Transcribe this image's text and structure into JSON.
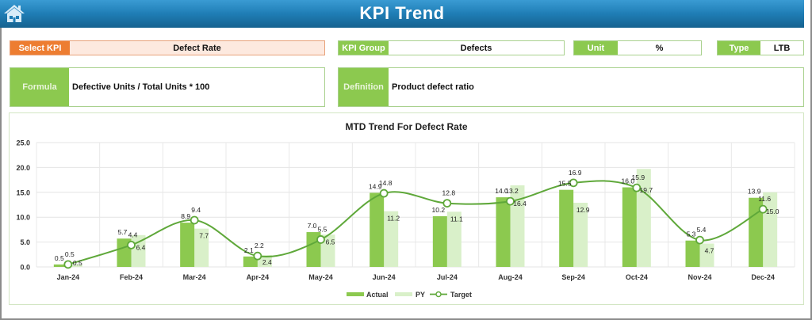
{
  "header": {
    "title": "KPI Trend",
    "home_icon": "home-icon"
  },
  "filters": {
    "select_kpi": {
      "label": "Select KPI",
      "value": "Defect Rate"
    },
    "kpi_group": {
      "label": "KPI Group",
      "value": "Defects"
    },
    "unit": {
      "label": "Unit",
      "value": "%"
    },
    "type": {
      "label": "Type",
      "value": "LTB"
    }
  },
  "info": {
    "formula": {
      "label": "Formula",
      "value": "Defective Units / Total Units * 100"
    },
    "definition": {
      "label": "Definition",
      "value": "Product defect ratio"
    }
  },
  "colors": {
    "header_blue": "#1f7db5",
    "select_orange": "#ed7d31",
    "label_green": "#8cc94f",
    "actual_bar": "#8cc94f",
    "py_bar": "#d9f0c9",
    "target_line": "#5fa83a"
  },
  "chart_data": {
    "type": "bar",
    "title": "MTD Trend For Defect Rate",
    "xlabel": "",
    "ylabel": "",
    "ylim": [
      0,
      25
    ],
    "yticks": [
      "0.0",
      "5.0",
      "10.0",
      "15.0",
      "20.0",
      "25.0"
    ],
    "grid": true,
    "legend_position": "bottom",
    "categories": [
      "Jan-24",
      "Feb-24",
      "Mar-24",
      "Apr-24",
      "May-24",
      "Jun-24",
      "Jul-24",
      "Aug-24",
      "Sep-24",
      "Oct-24",
      "Nov-24",
      "Dec-24"
    ],
    "series": [
      {
        "name": "Actual",
        "type": "bar",
        "values": [
          0.5,
          5.7,
          8.9,
          2.1,
          7.0,
          14.9,
          10.2,
          14.0,
          15.5,
          16.0,
          5.3,
          13.9
        ]
      },
      {
        "name": "PY",
        "type": "bar",
        "values": [
          0.5,
          6.4,
          7.7,
          2.4,
          6.5,
          11.2,
          11.1,
          16.4,
          12.9,
          19.7,
          4.7,
          15.0
        ]
      },
      {
        "name": "Target",
        "type": "line",
        "values": [
          0.5,
          4.4,
          9.4,
          2.2,
          5.5,
          14.8,
          12.8,
          13.2,
          16.9,
          15.9,
          5.4,
          11.6
        ]
      }
    ]
  }
}
